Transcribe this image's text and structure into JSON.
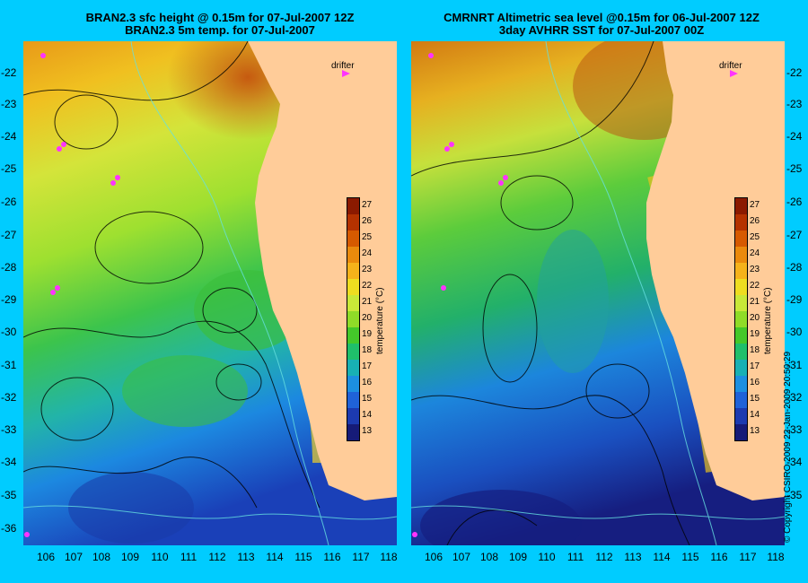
{
  "left_panel": {
    "title_line1": "BRAN2.3 sfc height @ 0.15m for 07-Jul-2007 12Z",
    "title_line2": "BRAN2.3 5m temp. for 07-Jul-2007",
    "drifter_label": "drifter"
  },
  "right_panel": {
    "title_line1": "CMRNRT Altimetric sea level  @0.15m  for 06-Jul-2007 12Z",
    "title_line2": "3day AVHRR SST for 07-Jul-2007 00Z",
    "drifter_label": "drifter"
  },
  "latitude_labels": [
    "-22",
    "-23",
    "-24",
    "-25",
    "-26",
    "-27",
    "-28",
    "-29",
    "-30",
    "-31",
    "-32",
    "-33",
    "-34",
    "-35",
    "-36"
  ],
  "longitude_labels": [
    "106",
    "107",
    "108",
    "109",
    "110",
    "111",
    "112",
    "113",
    "114",
    "115",
    "116",
    "117",
    "118"
  ],
  "colorbar": {
    "title": "temperature (°C)",
    "labels": [
      "27",
      "26",
      "25",
      "24",
      "23",
      "22",
      "21",
      "20",
      "19",
      "18",
      "17",
      "16",
      "15",
      "14",
      "13"
    ],
    "colors": [
      "#8b1a00",
      "#b43200",
      "#d65a00",
      "#ea8a0c",
      "#f5b21a",
      "#eedd20",
      "#c8e838",
      "#8fdc28",
      "#44c82a",
      "#1fbf6b",
      "#18b0b4",
      "#1c8fe0",
      "#1f62d8",
      "#1c3ab0",
      "#161b78"
    ]
  },
  "land_color": "#ffcc99",
  "copyright": "© Copyright CSIRO 2009",
  "timestamp": "22-Jan-2009 20:50:29"
}
